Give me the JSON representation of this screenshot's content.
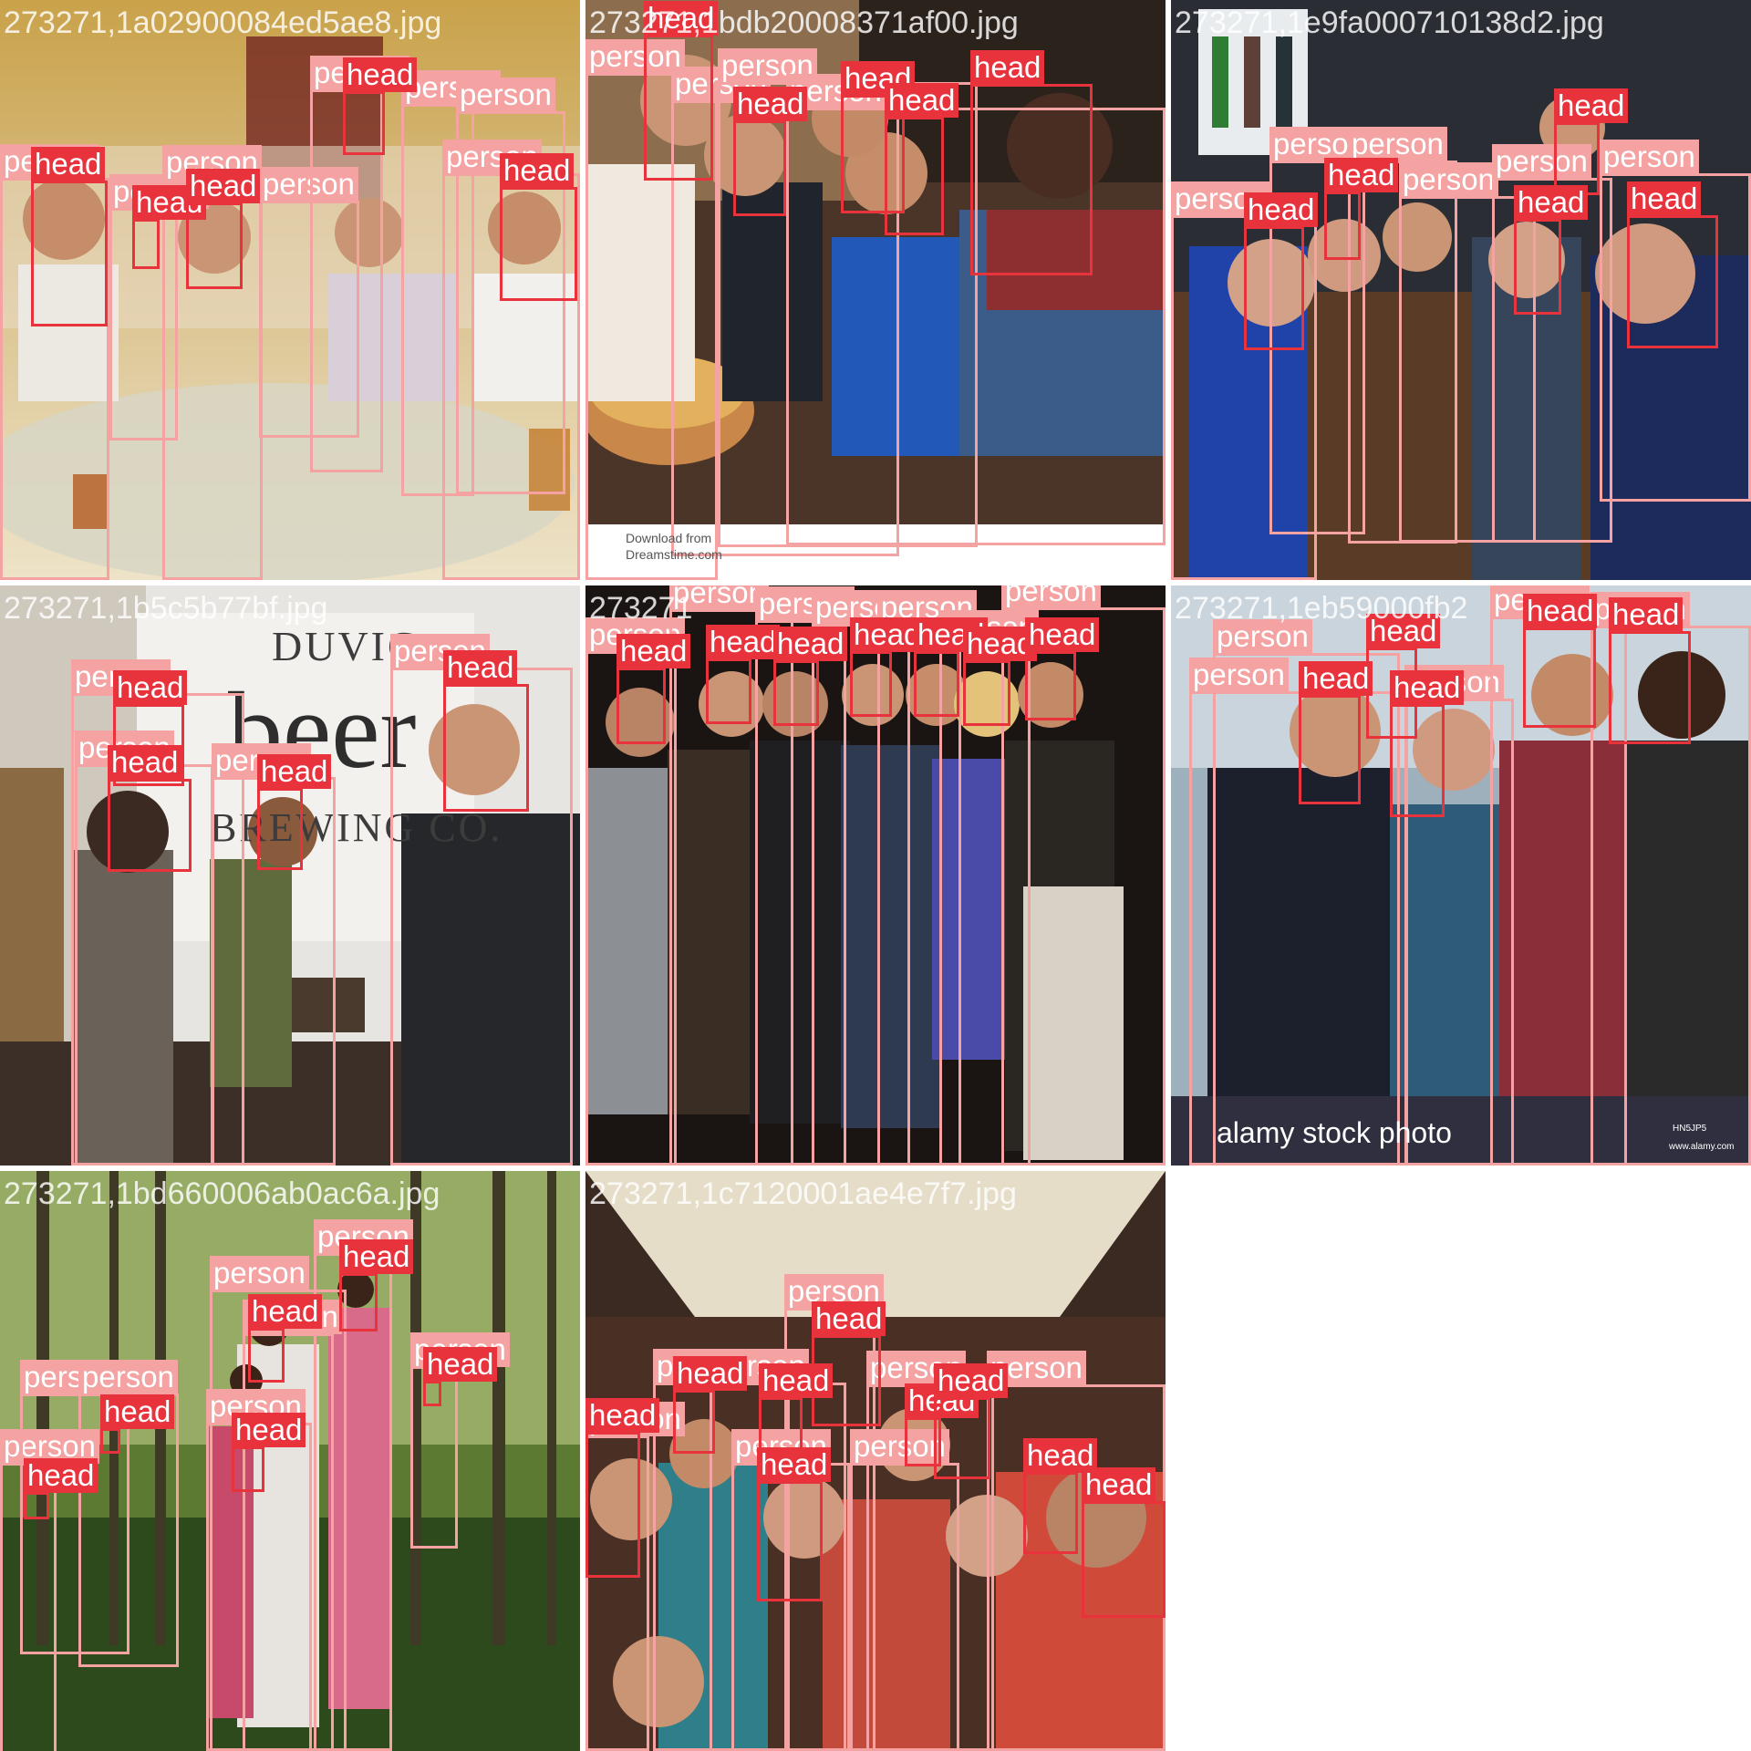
{
  "colors": {
    "person": "#f4a2a2",
    "head": "#e8323c",
    "label_text": "#ffffff"
  },
  "tiles": [
    {
      "filename": "273271,1a02900084ed5ae8.jpg",
      "boxes": [
        {
          "cls": "person",
          "label": "person"
        },
        {
          "cls": "person",
          "label": "person"
        },
        {
          "cls": "person",
          "label": "person"
        },
        {
          "cls": "person",
          "label": "person"
        },
        {
          "cls": "person",
          "label": "person"
        },
        {
          "cls": "person",
          "label": "person"
        },
        {
          "cls": "person",
          "label": "person"
        },
        {
          "cls": "person",
          "label": "person"
        },
        {
          "cls": "head",
          "label": "head"
        },
        {
          "cls": "head",
          "label": "head"
        },
        {
          "cls": "head",
          "label": "head"
        },
        {
          "cls": "head",
          "label": "head"
        },
        {
          "cls": "head",
          "label": "head"
        }
      ]
    },
    {
      "filename": "273271,1bdb20008371af00.jpg",
      "boxes": [
        {
          "cls": "person",
          "label": "person"
        },
        {
          "cls": "person",
          "label": "person"
        },
        {
          "cls": "person",
          "label": "person"
        },
        {
          "cls": "person",
          "label": "person"
        },
        {
          "cls": "head",
          "label": "head"
        },
        {
          "cls": "head",
          "label": "head"
        },
        {
          "cls": "head",
          "label": "head"
        },
        {
          "cls": "head",
          "label": "head"
        },
        {
          "cls": "head",
          "label": "head"
        }
      ],
      "watermark_lines": [
        "Download from",
        "Dreamstime.com"
      ]
    },
    {
      "filename": "273271,1e9fa000710138d2.jpg",
      "boxes": [
        {
          "cls": "person",
          "label": "person"
        },
        {
          "cls": "person",
          "label": "person"
        },
        {
          "cls": "person",
          "label": "person"
        },
        {
          "cls": "person",
          "label": "person"
        },
        {
          "cls": "person",
          "label": "person"
        },
        {
          "cls": "person",
          "label": "person"
        },
        {
          "cls": "head",
          "label": "head"
        },
        {
          "cls": "head",
          "label": "head"
        },
        {
          "cls": "head",
          "label": "head"
        },
        {
          "cls": "head",
          "label": "head"
        },
        {
          "cls": "head",
          "label": "head"
        }
      ]
    },
    {
      "filename": "273271,1b5c5b77bf.jpg",
      "boxes": [
        {
          "cls": "person",
          "label": "person"
        },
        {
          "cls": "person",
          "label": "person"
        },
        {
          "cls": "person",
          "label": "person"
        },
        {
          "cls": "person",
          "label": "person"
        },
        {
          "cls": "head",
          "label": "head"
        },
        {
          "cls": "head",
          "label": "head"
        },
        {
          "cls": "head",
          "label": "head"
        },
        {
          "cls": "head",
          "label": "head"
        }
      ],
      "sign_lines": [
        "DUVIG",
        "beer",
        "BREWING CO."
      ]
    },
    {
      "filename": "273271",
      "boxes": [
        {
          "cls": "person",
          "label": "person"
        },
        {
          "cls": "person",
          "label": "person"
        },
        {
          "cls": "person",
          "label": "person"
        },
        {
          "cls": "person",
          "label": "person"
        },
        {
          "cls": "person",
          "label": "person"
        },
        {
          "cls": "person",
          "label": "person"
        },
        {
          "cls": "person",
          "label": "person"
        },
        {
          "cls": "head",
          "label": "head"
        },
        {
          "cls": "head",
          "label": "head"
        },
        {
          "cls": "head",
          "label": "head"
        },
        {
          "cls": "head",
          "label": "head"
        },
        {
          "cls": "head",
          "label": "head"
        },
        {
          "cls": "head",
          "label": "head"
        },
        {
          "cls": "head",
          "label": "head"
        }
      ]
    },
    {
      "filename": "273271,1eb59000fb2",
      "boxes": [
        {
          "cls": "person",
          "label": "person"
        },
        {
          "cls": "person",
          "label": "person"
        },
        {
          "cls": "person",
          "label": "person"
        },
        {
          "cls": "person",
          "label": "person"
        },
        {
          "cls": "person",
          "label": "person"
        },
        {
          "cls": "head",
          "label": "head"
        },
        {
          "cls": "head",
          "label": "head"
        },
        {
          "cls": "head",
          "label": "head"
        },
        {
          "cls": "head",
          "label": "head"
        },
        {
          "cls": "head",
          "label": "head"
        }
      ],
      "watermark_text": "alamy stock photo",
      "watermark_codes": [
        "HN5JP5",
        "www.alamy.com"
      ]
    },
    {
      "filename": "273271,1bd660006ab0ac6a.jpg",
      "boxes": [
        {
          "cls": "person",
          "label": "person"
        },
        {
          "cls": "person",
          "label": "person"
        },
        {
          "cls": "person",
          "label": "person"
        },
        {
          "cls": "person",
          "label": "person"
        },
        {
          "cls": "person",
          "label": "person"
        },
        {
          "cls": "person",
          "label": "person"
        },
        {
          "cls": "person",
          "label": "person"
        },
        {
          "cls": "person",
          "label": "person"
        },
        {
          "cls": "head",
          "label": "head"
        },
        {
          "cls": "head",
          "label": "head"
        },
        {
          "cls": "head",
          "label": "head"
        },
        {
          "cls": "head",
          "label": "head"
        },
        {
          "cls": "head",
          "label": "head"
        },
        {
          "cls": "head",
          "label": "head"
        }
      ]
    },
    {
      "filename": "273271,1c7120001ae4e7f7.jpg",
      "boxes": [
        {
          "cls": "person",
          "label": "person"
        },
        {
          "cls": "person",
          "label": "person"
        },
        {
          "cls": "person",
          "label": "person"
        },
        {
          "cls": "person",
          "label": "person"
        },
        {
          "cls": "person",
          "label": "person"
        },
        {
          "cls": "person",
          "label": "person"
        },
        {
          "cls": "person",
          "label": "person"
        },
        {
          "cls": "person",
          "label": "person"
        },
        {
          "cls": "head",
          "label": "head"
        },
        {
          "cls": "head",
          "label": "head"
        },
        {
          "cls": "head",
          "label": "head"
        },
        {
          "cls": "head",
          "label": "head"
        },
        {
          "cls": "head",
          "label": "head"
        },
        {
          "cls": "head",
          "label": "head"
        },
        {
          "cls": "head",
          "label": "head"
        },
        {
          "cls": "head",
          "label": "head"
        },
        {
          "cls": "head",
          "label": "head"
        }
      ]
    }
  ]
}
